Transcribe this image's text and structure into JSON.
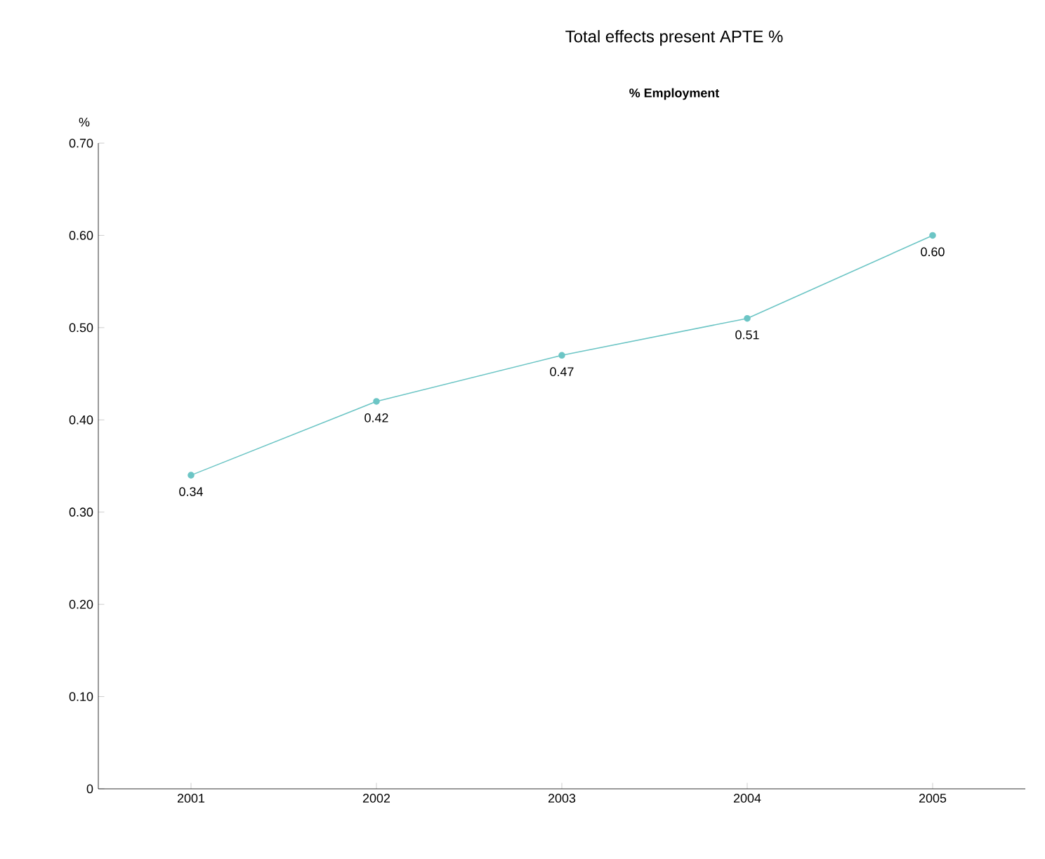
{
  "chart_data": {
    "type": "line",
    "title": "Total effects present APTE %",
    "subtitle": "% Employment",
    "ylabel": "%",
    "categories": [
      "2001",
      "2002",
      "2003",
      "2004",
      "2005"
    ],
    "series": [
      {
        "color": "#6cc5c5",
        "values": [
          0.34,
          0.42,
          0.47,
          0.51,
          0.6
        ],
        "value_labels": [
          "0.34",
          "0.42",
          "0.47",
          "0.51",
          "0.60"
        ]
      }
    ],
    "ylim": [
      0,
      0.7
    ],
    "yticks": [
      0,
      {
        "value": 0.1,
        "label": "0.10"
      },
      {
        "value": 0.2,
        "label": "0.20"
      },
      {
        "value": 0.3,
        "label": "0.30"
      },
      {
        "value": 0.4,
        "label": "0.40"
      },
      {
        "value": 0.5,
        "label": "0.50"
      },
      {
        "value": 0.6,
        "label": "0.60"
      },
      {
        "value": 0.7,
        "label": "0.70"
      }
    ],
    "marker": "circle",
    "line_style": "solid",
    "grid": false
  }
}
